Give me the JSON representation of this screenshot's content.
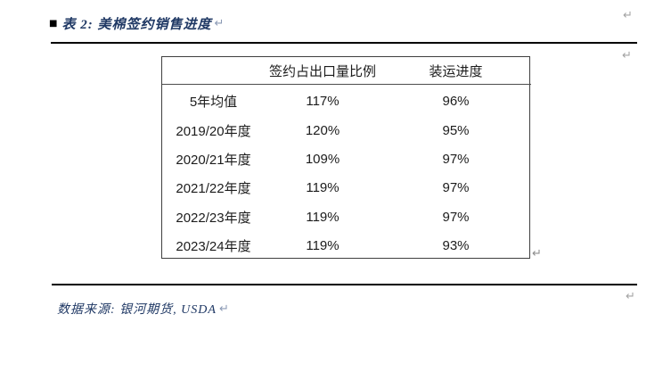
{
  "document": {
    "caption": {
      "bullet": "■",
      "text": "表 2: 美棉签约销售进度"
    },
    "footer": {
      "text": "数据来源: 银河期货, USDA"
    },
    "paragraph_mark": "↵"
  },
  "table": {
    "headers": [
      "",
      "签约占出口量比例",
      "装运进度"
    ],
    "rows": [
      [
        "5年均值",
        "117%",
        "96%"
      ],
      [
        "2019/20年度",
        "120%",
        "95%"
      ],
      [
        "2020/21年度",
        "109%",
        "97%"
      ],
      [
        "2021/22年度",
        "119%",
        "97%"
      ],
      [
        "2022/23年度",
        "119%",
        "97%"
      ],
      [
        "2023/24年度",
        "119%",
        "93%"
      ]
    ]
  },
  "colors": {
    "caption_navy": "#1f3864",
    "body_text": "#1c1c1c",
    "table_border": "#3f3f3f",
    "rule": "#000000",
    "paragraph_mark_gray": "#a3a3a3"
  }
}
